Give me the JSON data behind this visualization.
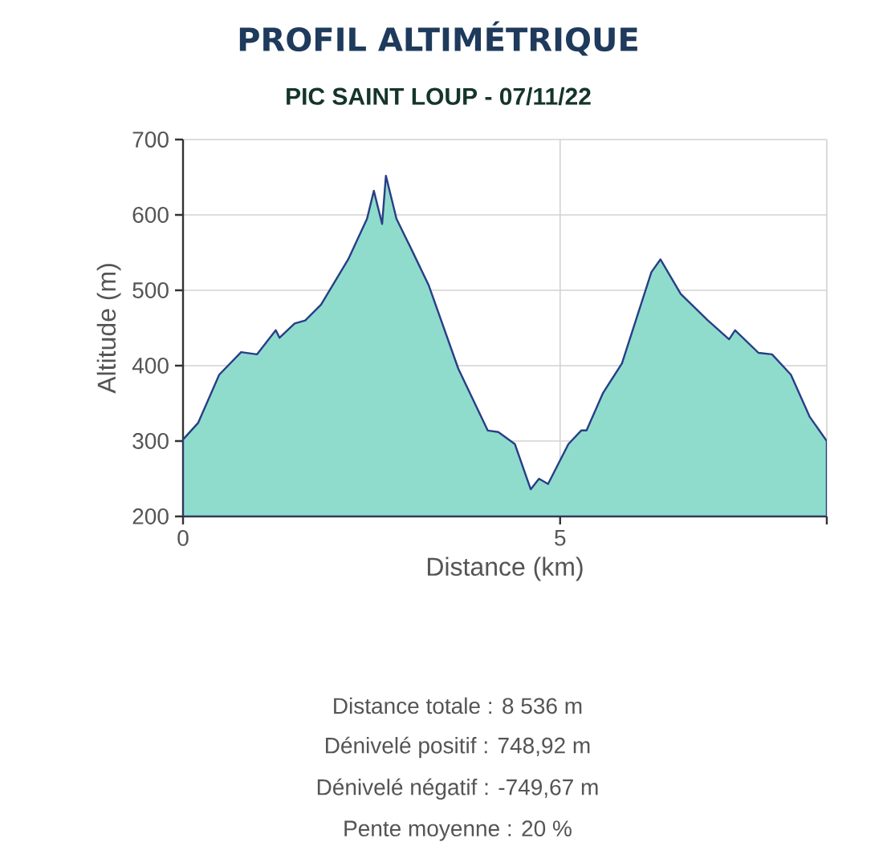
{
  "chart_data": {
    "type": "area",
    "title": "PROFIL ALTIMÉTRIQUE",
    "subtitle": "PIC SAINT LOUP  - 07/11/22",
    "xlabel": "Distance (km)",
    "ylabel": "Altitude (m)",
    "x": [
      0,
      0.2,
      0.48,
      0.77,
      0.98,
      1.23,
      1.28,
      1.48,
      1.62,
      1.83,
      2.19,
      2.44,
      2.53,
      2.64,
      2.69,
      2.83,
      3.04,
      3.26,
      3.65,
      4.04,
      4.18,
      4.4,
      4.61,
      4.72,
      4.84,
      5.11,
      5.28,
      5.35,
      5.57,
      5.82,
      6.21,
      6.33,
      6.6,
      6.96,
      7.24,
      7.32,
      7.63,
      7.81,
      8.06,
      8.31,
      8.536
    ],
    "values": [
      302,
      324,
      388,
      418,
      415,
      447,
      437,
      456,
      460,
      481,
      541,
      595,
      632,
      588,
      652,
      595,
      552,
      506,
      396,
      314,
      312,
      296,
      236,
      250,
      243,
      296,
      314,
      314,
      364,
      403,
      524,
      541,
      495,
      460,
      435,
      447,
      417,
      415,
      388,
      332,
      300
    ],
    "color": "#8fdccd",
    "xlim": [
      0,
      8.536
    ],
    "ylim": [
      200,
      700
    ],
    "xticks": [
      0,
      5,
      {
        "value": 8.536,
        "label": null
      }
    ],
    "yticks": [
      200,
      300,
      400,
      500,
      600,
      700
    ],
    "grid": true,
    "annotations": [
      "Distance totale : 8 536 m",
      "Dénivelé positif : 748,92 m",
      "Dénivelé négatif : -749,67 m",
      "Pente moyenne : 20 %"
    ]
  }
}
